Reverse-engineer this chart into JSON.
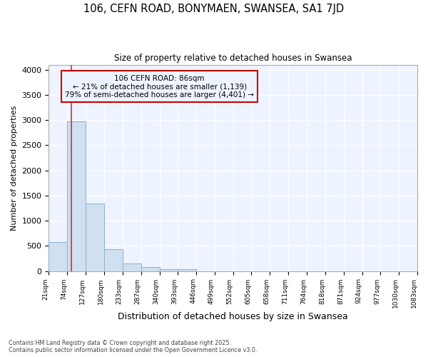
{
  "title_line1": "106, CEFN ROAD, BONYMAEN, SWANSEA, SA1 7JD",
  "title_line2": "Size of property relative to detached houses in Swansea",
  "xlabel": "Distribution of detached houses by size in Swansea",
  "ylabel": "Number of detached properties",
  "annotation_title": "106 CEFN ROAD: 86sqm",
  "annotation_line2": "← 21% of detached houses are smaller (1,139)",
  "annotation_line3": "79% of semi-detached houses are larger (4,401) →",
  "property_size": 86,
  "bin_edges": [
    21,
    74,
    127,
    180,
    233,
    287,
    340,
    393,
    446,
    499,
    552,
    605,
    658,
    711,
    764,
    818,
    871,
    924,
    977,
    1030,
    1083
  ],
  "bar_values": [
    580,
    2970,
    1340,
    430,
    155,
    75,
    40,
    38,
    0,
    0,
    0,
    0,
    0,
    0,
    0,
    0,
    0,
    0,
    0,
    0
  ],
  "bar_color": "#d0e0f0",
  "bar_edgecolor": "#8ab0cc",
  "vline_color": "#cc3333",
  "annotation_box_edgecolor": "#cc0000",
  "background_color": "#ffffff",
  "plot_bg_color": "#eef4ff",
  "grid_color": "#ffffff",
  "ylim": [
    0,
    4100
  ],
  "yticks": [
    0,
    500,
    1000,
    1500,
    2000,
    2500,
    3000,
    3500,
    4000
  ],
  "footer_line1": "Contains HM Land Registry data © Crown copyright and database right 2025.",
  "footer_line2": "Contains public sector information licensed under the Open Government Licence v3.0."
}
